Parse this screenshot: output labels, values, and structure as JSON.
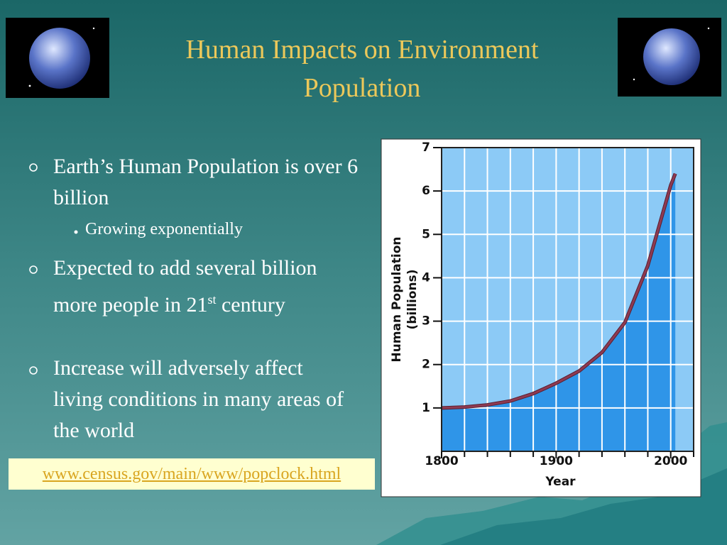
{
  "title": [
    "Human Impacts on Environment",
    "Population"
  ],
  "bullets": [
    {
      "text": "Earth’s Human Population is over 6 billion",
      "sub": "Growing exponentially"
    },
    {
      "text": "Expected to add several billion more people in 21",
      "sup": "st",
      "tail": "century"
    },
    {
      "text": "Increase will adversely affect living conditions in many areas of the world"
    }
  ],
  "link": "www.census.gov/main/www/popclock.html",
  "chart_data": {
    "type": "area",
    "x": [
      1800,
      1820,
      1840,
      1860,
      1880,
      1900,
      1920,
      1940,
      1960,
      1980,
      2000,
      2004
    ],
    "values": [
      1.0,
      1.02,
      1.07,
      1.16,
      1.33,
      1.57,
      1.85,
      2.28,
      2.97,
      4.28,
      6.13,
      6.4
    ],
    "color": "#2f95e8",
    "line_color": "#8e3a52",
    "xlim": [
      1800,
      2020
    ],
    "xticks": [
      1800,
      1900,
      2000
    ],
    "xminorticks": [
      1820,
      1840,
      1860,
      1880,
      1920,
      1940,
      1960,
      1980,
      2020
    ],
    "ylim": [
      0,
      7
    ],
    "yticks": [
      1,
      2,
      3,
      4,
      5,
      6,
      7
    ],
    "xlabel": "Year",
    "ylabel": [
      "Human Population",
      "(billions)"
    ],
    "grid": true
  }
}
